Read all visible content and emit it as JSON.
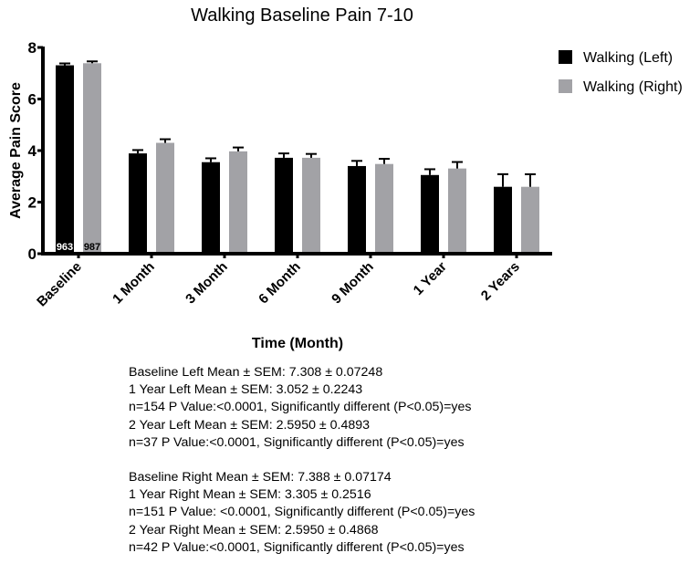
{
  "chart_data": {
    "type": "bar",
    "title": "Walking Baseline Pain 7-10",
    "xlabel": "Time (Month)",
    "ylabel": "Average Pain Score",
    "ylim": [
      0,
      8
    ],
    "yticks": [
      0,
      2,
      4,
      6,
      8
    ],
    "grid": false,
    "legend_position": "top-right",
    "categories": [
      "Baseline",
      "1 Month",
      "3 Month",
      "6 Month",
      "9 Month",
      "1 Year",
      "2 Years"
    ],
    "series": [
      {
        "name": "Walking (Left)",
        "color": "#000000",
        "values": [
          7.308,
          3.89,
          3.55,
          3.72,
          3.4,
          3.052,
          2.595
        ],
        "sem": [
          0.0725,
          0.13,
          0.15,
          0.17,
          0.2,
          0.2243,
          0.4893
        ]
      },
      {
        "name": "Walking (Right)",
        "color": "#a2a2a6",
        "values": [
          7.388,
          4.3,
          3.97,
          3.72,
          3.48,
          3.305,
          2.595
        ],
        "sem": [
          0.0717,
          0.14,
          0.15,
          0.15,
          0.2,
          0.2516,
          0.4868
        ]
      }
    ],
    "annotations": [
      {
        "category": "Baseline",
        "series": "Walking (Left)",
        "text": "963"
      },
      {
        "category": "Baseline",
        "series": "Walking (Right)",
        "text": "987"
      }
    ]
  },
  "stats_text": {
    "left": [
      "Baseline Left Mean ± SEM: 7.308 ± 0.07248",
      "1 Year Left Mean ± SEM: 3.052 ± 0.2243",
      "n=154 P Value:<0.0001, Significantly different (P<0.05)=yes",
      "2 Year Left Mean ± SEM: 2.5950 ± 0.4893",
      "n=37 P Value:<0.0001, Significantly different (P<0.05)=yes"
    ],
    "right": [
      "Baseline Right Mean ± SEM: 7.388 ± 0.07174",
      "1 Year Right Mean ± SEM: 3.305 ± 0.2516",
      "n=151 P Value: <0.0001, Significantly different (P<0.05)=yes",
      "2 Year Right Mean ± SEM: 2.5950 ± 0.4868",
      "n=42 P Value:<0.0001, Significantly different (P<0.05)=yes"
    ]
  }
}
